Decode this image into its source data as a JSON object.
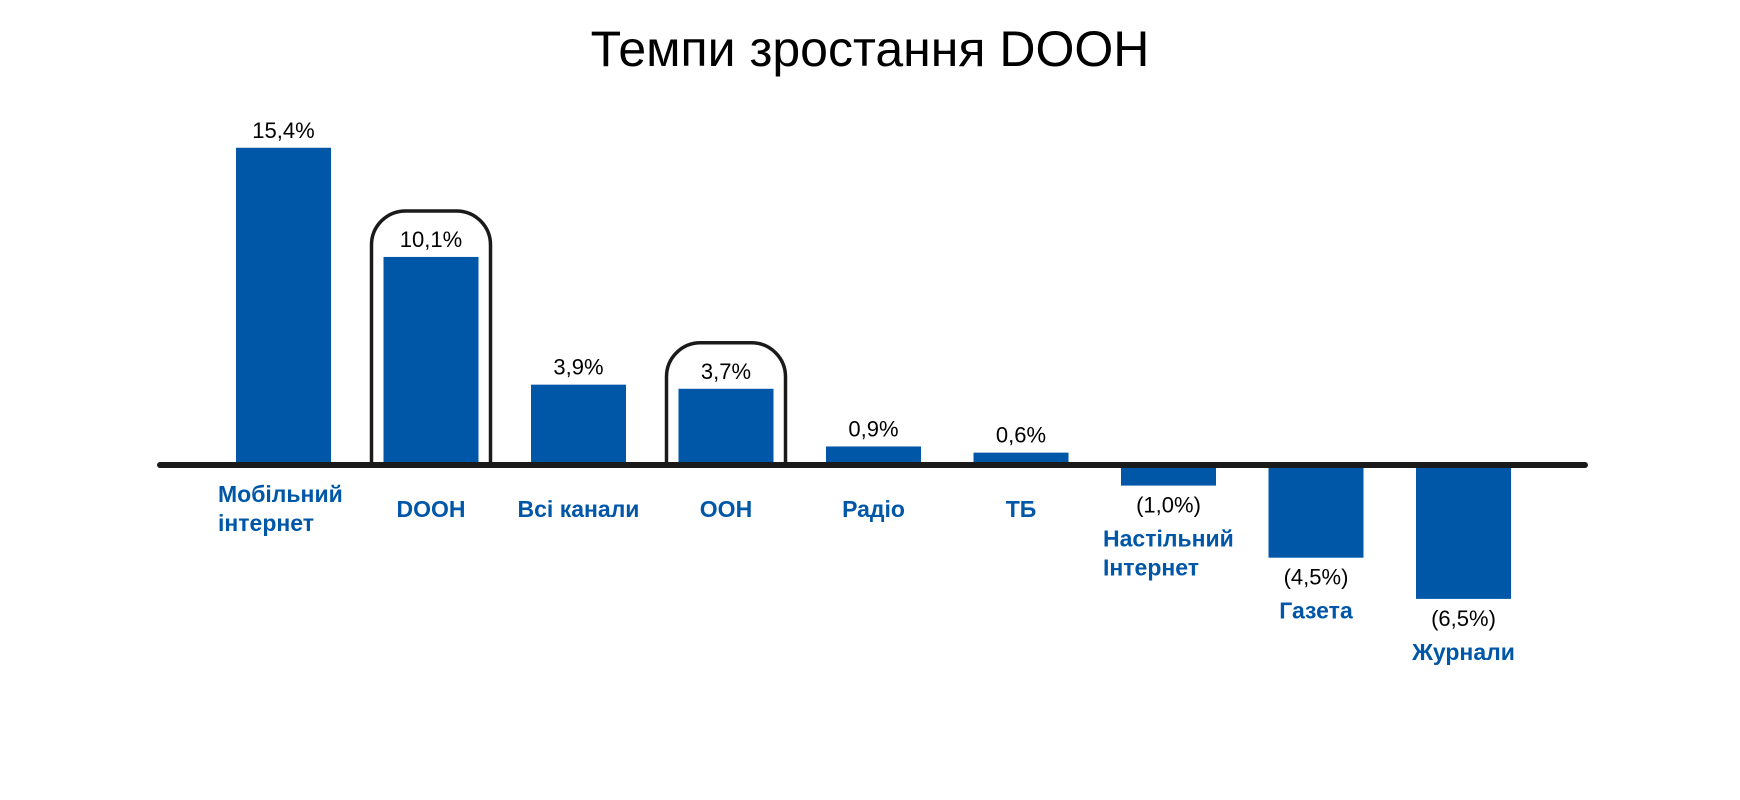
{
  "chart_data": {
    "type": "bar",
    "title": "Темпи зростання DOOH",
    "xlabel": "",
    "ylabel": "",
    "ylim": [
      -8,
      16
    ],
    "grid": false,
    "legend": "none",
    "categories": [
      "Мобільний інтернет",
      "DOOH",
      "Всі канали",
      "OOH",
      "Радіо",
      "ТБ",
      "Настільний Інтернет",
      "Газета",
      "Журнали"
    ],
    "category_lines": [
      [
        "Мобільний",
        "інтернет"
      ],
      [
        "DOOH"
      ],
      [
        "Всі канали"
      ],
      [
        "OOH"
      ],
      [
        "Радіо"
      ],
      [
        "ТБ"
      ],
      [
        "Настільний",
        "Інтернет"
      ],
      [
        "Газета"
      ],
      [
        "Журнали"
      ]
    ],
    "values": [
      15.4,
      10.1,
      3.9,
      3.7,
      0.9,
      0.6,
      -1.0,
      -4.5,
      -6.5
    ],
    "data_labels": [
      "15,4%",
      "10,1%",
      "3,9%",
      "3,7%",
      "0,9%",
      "0,6%",
      "(1,0%)",
      "(4,5%)",
      "(6,5%)"
    ],
    "highlighted": [
      "DOOH",
      "OOH"
    ]
  },
  "colors": {
    "bar": "#0057a8",
    "category_label": "#0057a8",
    "axis": "#1a1a1a",
    "highlight_outline": "#1a1a1a",
    "text": "#000000"
  }
}
